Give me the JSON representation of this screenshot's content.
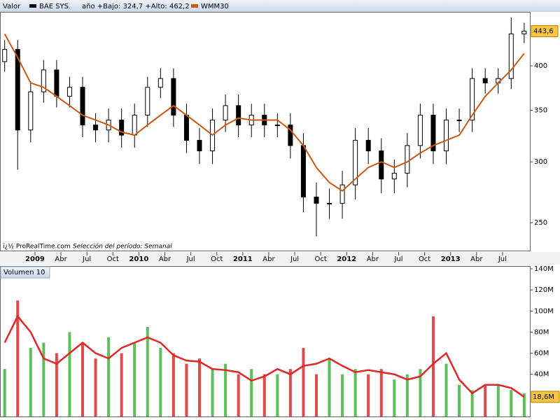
{
  "header": {
    "label": "Valor"
  },
  "chart_data": [
    {
      "type": "candlestick",
      "title": "año +Bajo: 324,7 +Alto: 462,2",
      "source": "ï¿½ ProRealTime.com",
      "note": "Selección del período: Semanal",
      "x": [
        -3.5,
        -2,
        -0.5,
        1,
        2.5,
        4,
        5.5,
        7,
        8.5,
        10,
        11.5,
        13,
        14.5,
        16,
        17.5,
        19,
        20.5,
        22,
        23.5,
        25,
        26.5,
        28,
        29.5,
        31,
        32.5,
        34,
        35.5,
        37,
        38.5,
        40,
        41.5,
        43,
        44.5,
        46,
        47.5,
        49,
        50.5,
        52,
        53.5,
        55,
        56.5
      ],
      "xlim": [
        -4.04,
        57.16
      ],
      "xticks": [
        {
          "value": 0,
          "label": "2009"
        },
        {
          "value": 3,
          "label": "Abr"
        },
        {
          "value": 6,
          "label": "Jul"
        },
        {
          "value": 9,
          "label": "Oct"
        },
        {
          "value": 12,
          "label": "2010"
        },
        {
          "value": 15,
          "label": "Abr"
        },
        {
          "value": 18,
          "label": "Jul"
        },
        {
          "value": 21,
          "label": "Oct"
        },
        {
          "value": 24,
          "label": "2011"
        },
        {
          "value": 27,
          "label": "Abr"
        },
        {
          "value": 30,
          "label": "Jul"
        },
        {
          "value": 33,
          "label": "Oct"
        },
        {
          "value": 36,
          "label": "2012"
        },
        {
          "value": 39,
          "label": "Abr"
        },
        {
          "value": 42,
          "label": "Jul"
        },
        {
          "value": 45,
          "label": "Oct"
        },
        {
          "value": 48,
          "label": "2013"
        },
        {
          "value": 51,
          "label": "Abr"
        },
        {
          "value": 54,
          "label": "Jul"
        }
      ],
      "ylim": [
        230,
        469
      ],
      "log_scale": true,
      "yticks": [
        250,
        300,
        350,
        400
      ],
      "series": [
        {
          "name": "BAE SYS.",
          "color": "#000000",
          "open": [
            405,
            420,
            330,
            370,
            395,
            365,
            375,
            335,
            330,
            340,
            325,
            345,
            375,
            385,
            345,
            320,
            310,
            340,
            355,
            335,
            345,
            335,
            335,
            315,
            270,
            265,
            265,
            280,
            320,
            310,
            285,
            290,
            315,
            345,
            310,
            340,
            340,
            385,
            380,
            385,
            440
          ],
          "high": [
            432,
            432,
            382,
            407,
            407,
            387,
            387,
            347,
            352,
            352,
            357,
            387,
            397,
            397,
            357,
            332,
            352,
            367,
            367,
            357,
            357,
            347,
            347,
            327,
            282,
            277,
            292,
            332,
            332,
            322,
            302,
            327,
            357,
            357,
            352,
            352,
            397,
            397,
            397,
            462,
            455
          ],
          "low": [
            393,
            293,
            318,
            358,
            353,
            353,
            323,
            318,
            318,
            313,
            313,
            333,
            363,
            333,
            308,
            298,
            298,
            328,
            323,
            323,
            323,
            323,
            303,
            258,
            240,
            253,
            253,
            268,
            298,
            273,
            273,
            278,
            303,
            298,
            298,
            328,
            328,
            368,
            368,
            373,
            428
          ],
          "values": [
            420,
            330,
            370,
            395,
            365,
            375,
            335,
            330,
            340,
            325,
            345,
            375,
            385,
            345,
            320,
            310,
            340,
            355,
            335,
            345,
            335,
            335,
            315,
            270,
            265,
            265,
            280,
            320,
            310,
            285,
            290,
            315,
            345,
            310,
            340,
            340,
            385,
            380,
            385,
            440,
            443.6
          ],
          "value_labels": [
            null,
            null,
            null,
            null,
            null,
            null,
            null,
            null,
            null,
            null,
            null,
            null,
            null,
            null,
            null,
            null,
            null,
            null,
            null,
            null,
            null,
            null,
            null,
            null,
            null,
            null,
            null,
            null,
            null,
            null,
            null,
            null,
            null,
            null,
            null,
            null,
            null,
            null,
            null,
            null,
            "443,6"
          ]
        },
        {
          "name": "WMM30",
          "color": "#c85a14",
          "values": [
            440,
            410,
            380,
            375,
            365,
            355,
            345,
            340,
            335,
            328,
            325,
            335,
            345,
            355,
            345,
            335,
            325,
            335,
            342,
            340,
            340,
            340,
            330,
            315,
            295,
            282,
            275,
            285,
            295,
            300,
            295,
            300,
            308,
            315,
            320,
            325,
            345,
            365,
            380,
            395,
            415
          ]
        }
      ]
    },
    {
      "type": "bar",
      "title": "Volumen 10",
      "ylim": [
        0,
        142
      ],
      "yticks": [
        {
          "value": 40,
          "label": "40M"
        },
        {
          "value": 60,
          "label": "60M"
        },
        {
          "value": 80,
          "label": "80M"
        },
        {
          "value": 100,
          "label": "100M"
        },
        {
          "value": 120,
          "label": "120M"
        },
        {
          "value": 140,
          "label": "140M"
        }
      ],
      "up_color": "#5cbf5c",
      "down_color": "#dd4b4b",
      "series": [
        {
          "values": [
            45,
            110,
            65,
            70,
            60,
            80,
            70,
            55,
            75,
            60,
            70,
            85,
            65,
            60,
            50,
            55,
            45,
            50,
            40,
            45,
            40,
            40,
            45,
            65,
            40,
            55,
            40,
            45,
            40,
            45,
            35,
            40,
            45,
            95,
            50,
            30,
            25,
            30,
            30,
            25,
            22
          ]
        },
        {
          "color": "#e02828",
          "values": [
            70,
            95,
            80,
            55,
            50,
            60,
            70,
            60,
            55,
            65,
            70,
            75,
            70,
            58,
            53,
            52,
            45,
            44,
            42,
            34,
            38,
            45,
            40,
            48,
            50,
            55,
            48,
            42,
            44,
            42,
            40,
            35,
            38,
            50,
            60,
            35,
            22,
            30,
            30,
            27,
            18.6
          ],
          "value_labels": [
            null,
            null,
            null,
            null,
            null,
            null,
            null,
            null,
            null,
            null,
            null,
            null,
            null,
            null,
            null,
            null,
            null,
            null,
            null,
            null,
            null,
            null,
            null,
            null,
            null,
            null,
            null,
            null,
            null,
            null,
            null,
            null,
            null,
            null,
            null,
            null,
            null,
            null,
            null,
            null,
            "18,6M"
          ]
        }
      ]
    }
  ]
}
